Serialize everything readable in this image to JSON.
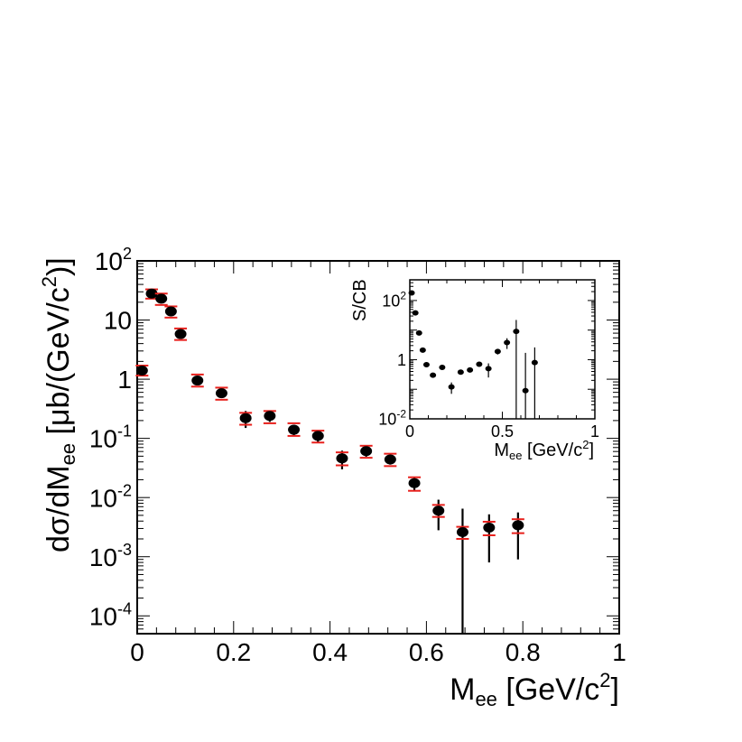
{
  "chart_data": [
    {
      "panel": "main",
      "type": "scatter",
      "yscale": "log",
      "xlim": [
        0,
        1
      ],
      "ylim": [
        5e-05,
        100
      ],
      "x_ticks": [
        "0",
        "0.2",
        "0.4",
        "0.6",
        "0.8",
        "1"
      ],
      "y_ticks": [
        {
          "value": 100,
          "base": "10",
          "exp": "2"
        },
        {
          "value": 10,
          "base": "10",
          "exp": ""
        },
        {
          "value": 1,
          "base": "1",
          "exp": ""
        },
        {
          "value": 0.1,
          "base": "10",
          "exp": "-1"
        },
        {
          "value": 0.01,
          "base": "10",
          "exp": "-2"
        },
        {
          "value": 0.001,
          "base": "10",
          "exp": "-3"
        },
        {
          "value": 0.0001,
          "base": "10",
          "exp": "-4"
        }
      ],
      "xlabel": {
        "main": "M",
        "sub": "ee",
        "unit": " [GeV/c",
        "sup": "2",
        "close": "]"
      },
      "ylabel": {
        "a": "dσ/dM",
        "sub": "ee",
        "b": "  [μb/(GeV/c",
        "sup": "2",
        "c": ")]"
      },
      "grid": false,
      "points": [
        {
          "x": 0.01,
          "y": 1.4,
          "stat_lo": 1.15,
          "stat_hi": 1.7,
          "sys_lo": 1.15,
          "sys_hi": 1.7
        },
        {
          "x": 0.03,
          "y": 28,
          "stat_lo": 25,
          "stat_hi": 31,
          "sys_lo": 23,
          "sys_hi": 33
        },
        {
          "x": 0.05,
          "y": 23,
          "stat_lo": 20,
          "stat_hi": 26,
          "sys_lo": 18,
          "sys_hi": 28
        },
        {
          "x": 0.07,
          "y": 14,
          "stat_lo": 12,
          "stat_hi": 16,
          "sys_lo": 11,
          "sys_hi": 17
        },
        {
          "x": 0.09,
          "y": 5.8,
          "stat_lo": 5.0,
          "stat_hi": 6.6,
          "sys_lo": 4.6,
          "sys_hi": 7.2
        },
        {
          "x": 0.125,
          "y": 0.95,
          "stat_lo": 0.8,
          "stat_hi": 1.1,
          "sys_lo": 0.75,
          "sys_hi": 1.2
        },
        {
          "x": 0.175,
          "y": 0.58,
          "stat_lo": 0.48,
          "stat_hi": 0.68,
          "sys_lo": 0.45,
          "sys_hi": 0.72
        },
        {
          "x": 0.225,
          "y": 0.22,
          "stat_lo": 0.15,
          "stat_hi": 0.29,
          "sys_lo": 0.17,
          "sys_hi": 0.27
        },
        {
          "x": 0.275,
          "y": 0.24,
          "stat_lo": 0.19,
          "stat_hi": 0.29,
          "sys_lo": 0.18,
          "sys_hi": 0.29
        },
        {
          "x": 0.325,
          "y": 0.14,
          "stat_lo": 0.11,
          "stat_hi": 0.17,
          "sys_lo": 0.11,
          "sys_hi": 0.18
        },
        {
          "x": 0.375,
          "y": 0.11,
          "stat_lo": 0.085,
          "stat_hi": 0.135,
          "sys_lo": 0.085,
          "sys_hi": 0.135
        },
        {
          "x": 0.425,
          "y": 0.046,
          "stat_lo": 0.03,
          "stat_hi": 0.062,
          "sys_lo": 0.035,
          "sys_hi": 0.058
        },
        {
          "x": 0.475,
          "y": 0.061,
          "stat_lo": 0.049,
          "stat_hi": 0.073,
          "sys_lo": 0.047,
          "sys_hi": 0.075
        },
        {
          "x": 0.525,
          "y": 0.044,
          "stat_lo": 0.036,
          "stat_hi": 0.052,
          "sys_lo": 0.034,
          "sys_hi": 0.055
        },
        {
          "x": 0.575,
          "y": 0.0175,
          "stat_lo": 0.013,
          "stat_hi": 0.022,
          "sys_lo": 0.013,
          "sys_hi": 0.022
        },
        {
          "x": 0.625,
          "y": 0.006,
          "stat_lo": 0.0028,
          "stat_hi": 0.0092,
          "sys_lo": 0.0047,
          "sys_hi": 0.0075
        },
        {
          "x": 0.675,
          "y": 0.0026,
          "stat_lo": 5e-05,
          "stat_hi": 0.0065,
          "sys_lo": 0.002,
          "sys_hi": 0.0032
        },
        {
          "x": 0.73,
          "y": 0.0031,
          "stat_lo": 0.0008,
          "stat_hi": 0.0052,
          "sys_lo": 0.0023,
          "sys_hi": 0.0039
        },
        {
          "x": 0.79,
          "y": 0.0034,
          "stat_lo": 0.0009,
          "stat_hi": 0.0056,
          "sys_lo": 0.0025,
          "sys_hi": 0.0043
        }
      ]
    },
    {
      "panel": "inset",
      "type": "scatter",
      "yscale": "log",
      "xlim": [
        0,
        1
      ],
      "ylim": [
        0.01,
        500
      ],
      "x_ticks": [
        "0",
        "0.5",
        "1"
      ],
      "y_ticks": [
        {
          "value": 100,
          "base": "10",
          "exp": "2"
        },
        {
          "value": 1,
          "base": "1",
          "exp": ""
        },
        {
          "value": 0.01,
          "base": "10",
          "exp": "-2"
        }
      ],
      "xlabel": {
        "main": "M",
        "sub": "ee",
        "unit": " [GeV/c",
        "sup": "2",
        "close": "]"
      },
      "ylabel": "S/CB",
      "points": [
        {
          "x": 0.01,
          "y": 180,
          "lo": 180,
          "hi": 180
        },
        {
          "x": 0.03,
          "y": 38,
          "lo": 38,
          "hi": 38
        },
        {
          "x": 0.05,
          "y": 8,
          "lo": 8,
          "hi": 8
        },
        {
          "x": 0.07,
          "y": 2.1,
          "lo": 2.1,
          "hi": 2.1
        },
        {
          "x": 0.09,
          "y": 0.68,
          "lo": 0.68,
          "hi": 0.68
        },
        {
          "x": 0.125,
          "y": 0.3,
          "lo": 0.26,
          "hi": 0.34
        },
        {
          "x": 0.175,
          "y": 0.55,
          "lo": 0.48,
          "hi": 0.62
        },
        {
          "x": 0.225,
          "y": 0.12,
          "lo": 0.07,
          "hi": 0.17
        },
        {
          "x": 0.275,
          "y": 0.38,
          "lo": 0.32,
          "hi": 0.44
        },
        {
          "x": 0.325,
          "y": 0.45,
          "lo": 0.38,
          "hi": 0.52
        },
        {
          "x": 0.375,
          "y": 0.7,
          "lo": 0.6,
          "hi": 0.8
        },
        {
          "x": 0.425,
          "y": 0.5,
          "lo": 0.25,
          "hi": 0.75
        },
        {
          "x": 0.475,
          "y": 1.9,
          "lo": 1.5,
          "hi": 2.3
        },
        {
          "x": 0.525,
          "y": 3.8,
          "lo": 2.3,
          "hi": 5.3
        },
        {
          "x": 0.575,
          "y": 9,
          "lo": 0.01,
          "hi": 22
        },
        {
          "x": 0.625,
          "y": 0.09,
          "lo": 0.01,
          "hi": 1.7
        },
        {
          "x": 0.675,
          "y": 0.8,
          "lo": 0.01,
          "hi": 2.6
        }
      ]
    }
  ],
  "colors": {
    "marker": "#000000",
    "sys_error": "#e8201c",
    "axis": "#000000"
  }
}
